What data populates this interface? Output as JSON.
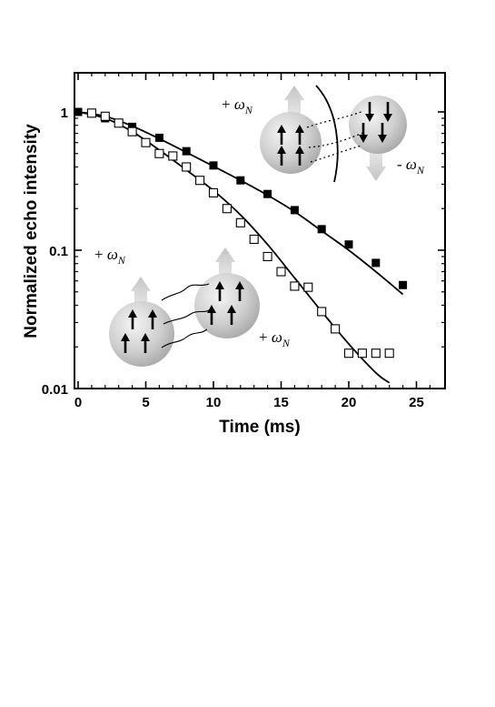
{
  "chart_data": {
    "type": "scatter",
    "title": "",
    "xlabel": "Time  (ms)",
    "ylabel": "Normalized echo intensity",
    "xlim": [
      0,
      27
    ],
    "ylim": [
      0.01,
      2
    ],
    "yscale": "log",
    "grid": false,
    "xticks": [
      0,
      5,
      10,
      15,
      20,
      25
    ],
    "xtick_labels": [
      "0",
      "5",
      "10",
      "15",
      "20",
      "25"
    ],
    "yticks": [
      0.01,
      0.1,
      1
    ],
    "ytick_labels": [
      "0.01",
      "0.1",
      "1"
    ],
    "series": [
      {
        "marker": "filled-square",
        "x": [
          0,
          2,
          4,
          6,
          8,
          10,
          12,
          14,
          16,
          18,
          20,
          22,
          24
        ],
        "y": [
          1.0,
          0.9,
          0.78,
          0.65,
          0.52,
          0.41,
          0.32,
          0.255,
          0.195,
          0.142,
          0.11,
          0.081,
          0.056
        ]
      },
      {
        "marker": "open-square",
        "x": [
          1,
          2,
          3,
          4,
          5,
          6,
          7,
          8,
          9,
          10,
          11,
          12,
          13,
          14,
          15,
          16,
          17,
          18,
          19,
          20,
          21,
          22,
          23
        ],
        "y": [
          0.98,
          0.93,
          0.83,
          0.72,
          0.6,
          0.5,
          0.48,
          0.4,
          0.32,
          0.26,
          0.2,
          0.158,
          0.12,
          0.09,
          0.07,
          0.055,
          0.054,
          0.036,
          0.027,
          0.018,
          0.018,
          0.018,
          0.018
        ]
      }
    ],
    "fits": [
      {
        "for": "filled-square",
        "x": [
          0,
          2,
          4,
          6,
          8,
          10,
          12,
          14,
          16,
          18,
          20,
          22,
          24
        ],
        "y": [
          1.0,
          0.93,
          0.79,
          0.64,
          0.51,
          0.405,
          0.32,
          0.25,
          0.19,
          0.138,
          0.1,
          0.07,
          0.048
        ]
      },
      {
        "for": "open-square",
        "x": [
          0,
          2,
          4,
          6,
          8,
          10,
          12,
          14,
          16,
          18,
          20,
          22,
          23
        ],
        "y": [
          1.0,
          0.9,
          0.72,
          0.53,
          0.38,
          0.27,
          0.18,
          0.11,
          0.063,
          0.036,
          0.021,
          0.013,
          0.011
        ]
      }
    ],
    "annotations": [
      {
        "id": "tr-plus",
        "sign": "+",
        "symbol": "ω",
        "sub": "N"
      },
      {
        "id": "tr-minus",
        "sign": "-",
        "symbol": "ω",
        "sub": "N"
      },
      {
        "id": "left-plus",
        "sign": "+",
        "symbol": "ω",
        "sub": "N"
      },
      {
        "id": "bottom-plus",
        "sign": "+",
        "symbol": "ω",
        "sub": "N"
      }
    ]
  }
}
